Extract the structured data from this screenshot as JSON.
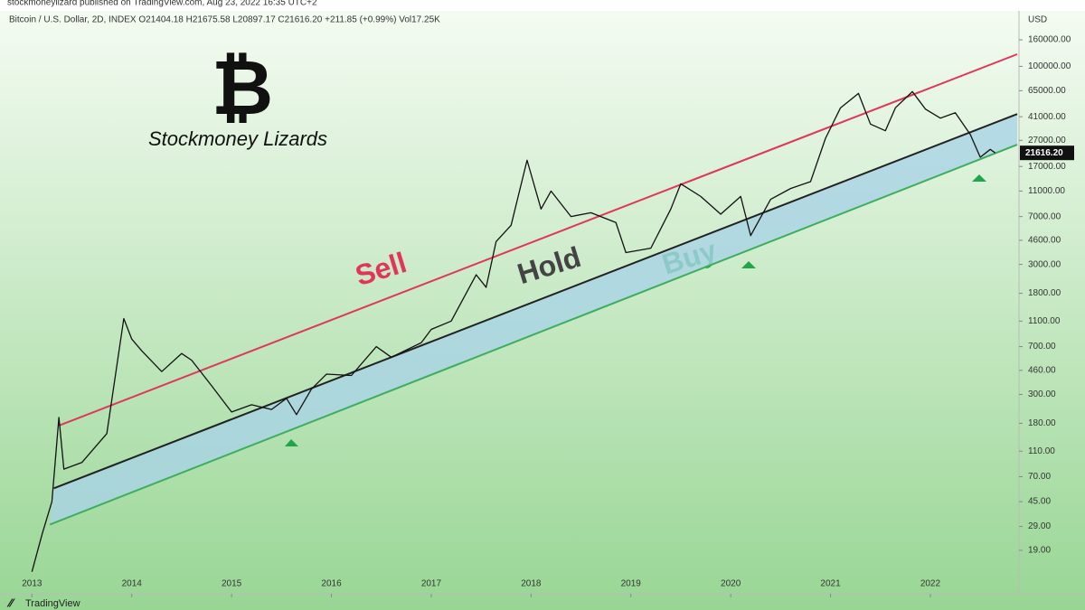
{
  "header": {
    "publisher": "stockmoneylizard published on TradingView.com, Aug 23, 2022 16:35 UTC+2",
    "footer": "TradingView"
  },
  "chart_data": {
    "type": "line",
    "title": "Bitcoin / U.S. Dollar, 2D, INDEX  O21404.18  H21675.58  L20897.17  C21616.20  +211.85 (+0.99%)  Vol17.25K",
    "subtitle": "Stockmoney Lizards",
    "logo": "₿",
    "y_unit": "USD",
    "annotations": [
      "Sell",
      "Hold",
      "Buy"
    ],
    "log_scale": true,
    "xlim": [
      2012.68,
      2022.87
    ],
    "ylim": [
      9.1,
      185000
    ],
    "xticks": [
      2013,
      2014,
      2015,
      2016,
      2017,
      2018,
      2019,
      2020,
      2021,
      2022
    ],
    "yticks": [
      {
        "value": 160000,
        "label": "160000.00"
      },
      {
        "value": 100000,
        "label": "100000.00"
      },
      {
        "value": 65000,
        "label": "65000.00"
      },
      {
        "value": 41000,
        "label": "41000.00"
      },
      {
        "value": 27000,
        "label": "27000.00"
      },
      {
        "value": 17000,
        "label": "17000.00"
      },
      {
        "value": 11000,
        "label": "11000.00"
      },
      {
        "value": 7000,
        "label": "7000.00"
      },
      {
        "value": 4600,
        "label": "4600.00"
      },
      {
        "value": 3000,
        "label": "3000.00"
      },
      {
        "value": 1800,
        "label": "1800.00"
      },
      {
        "value": 1100,
        "label": "1100.00"
      },
      {
        "value": 700,
        "label": "700.00"
      },
      {
        "value": 460,
        "label": "460.00"
      },
      {
        "value": 300,
        "label": "300.00"
      },
      {
        "value": 180,
        "label": "180.00"
      },
      {
        "value": 110,
        "label": "110.00"
      },
      {
        "value": 70,
        "label": "70.00"
      },
      {
        "value": 45,
        "label": "45.00"
      },
      {
        "value": 29,
        "label": "29.00"
      },
      {
        "value": 19,
        "label": "19.00"
      }
    ],
    "last_price": {
      "value": 21616.2,
      "label": "21616.20"
    },
    "series": [
      {
        "color": "#111111",
        "x": [
          2013.0,
          2013.1,
          2013.2,
          2013.27,
          2013.32,
          2013.5,
          2013.75,
          2013.92,
          2014.0,
          2014.1,
          2014.3,
          2014.5,
          2014.6,
          2014.8,
          2015.0,
          2015.2,
          2015.4,
          2015.55,
          2015.65,
          2015.8,
          2015.95,
          2016.2,
          2016.45,
          2016.6,
          2016.9,
          2017.0,
          2017.2,
          2017.45,
          2017.55,
          2017.65,
          2017.8,
          2017.96,
          2018.1,
          2018.2,
          2018.4,
          2018.6,
          2018.85,
          2018.95,
          2019.2,
          2019.4,
          2019.5,
          2019.7,
          2019.9,
          2020.1,
          2020.2,
          2020.4,
          2020.6,
          2020.8,
          2020.95,
          2021.1,
          2021.28,
          2021.4,
          2021.55,
          2021.65,
          2021.82,
          2021.95,
          2022.1,
          2022.25,
          2022.4,
          2022.5,
          2022.6,
          2022.65
        ],
        "values": [
          13,
          25,
          45,
          200,
          80,
          90,
          150,
          1150,
          800,
          650,
          450,
          620,
          550,
          350,
          220,
          250,
          230,
          280,
          210,
          330,
          430,
          420,
          700,
          580,
          750,
          950,
          1100,
          2500,
          2000,
          4500,
          6000,
          19000,
          8000,
          11000,
          7000,
          7500,
          6300,
          3700,
          4000,
          8000,
          12500,
          10000,
          7300,
          10000,
          5000,
          9500,
          11500,
          13000,
          28000,
          48000,
          62000,
          36000,
          32000,
          48000,
          64000,
          47000,
          40000,
          44000,
          30000,
          20000,
          23000,
          21616.2
        ]
      },
      {
        "color": "#e0365a",
        "x": [
          2013.27,
          2022.87
        ],
        "values": [
          173,
          124000
        ]
      },
      {
        "color": "#222222",
        "x": [
          2013.22,
          2022.87
        ],
        "values": [
          57,
          43000
        ]
      },
      {
        "color": "#3dae5c",
        "x": [
          2013.18,
          2022.87
        ],
        "values": [
          30,
          25000
        ]
      }
    ]
  }
}
